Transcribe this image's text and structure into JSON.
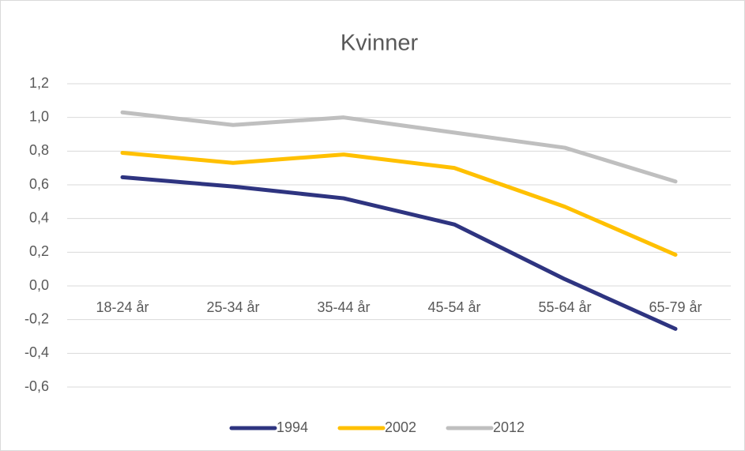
{
  "chart_data": {
    "type": "line",
    "title": "Kvinner",
    "categories": [
      "18-24 år",
      "25-34 år",
      "35-44 år",
      "45-54 år",
      "55-64 år",
      "65-79 år"
    ],
    "series": [
      {
        "name": "1994",
        "color": "#2e3480",
        "values": [
          0.645,
          0.59,
          0.52,
          0.365,
          0.04,
          -0.255
        ]
      },
      {
        "name": "2002",
        "color": "#ffc000",
        "values": [
          0.79,
          0.73,
          0.78,
          0.7,
          0.47,
          0.185
        ]
      },
      {
        "name": "2012",
        "color": "#bfbfbf",
        "values": [
          1.03,
          0.955,
          1.0,
          0.91,
          0.82,
          0.62
        ]
      }
    ],
    "ylim": [
      -0.6,
      1.2
    ],
    "yticks": [
      {
        "value": -0.6,
        "label": "-0,6"
      },
      {
        "value": -0.4,
        "label": "-0,4"
      },
      {
        "value": -0.2,
        "label": "-0,2"
      },
      {
        "value": 0,
        "label": "0,0"
      },
      {
        "value": 0.2,
        "label": "0,2"
      },
      {
        "value": 0.4,
        "label": "0,4"
      },
      {
        "value": 0.6,
        "label": "0,6"
      },
      {
        "value": 0.8,
        "label": "0,8"
      },
      {
        "value": 1.0,
        "label": "1,0"
      },
      {
        "value": 1.2,
        "label": "1,2"
      }
    ],
    "grid": true,
    "legend": "bottom"
  }
}
